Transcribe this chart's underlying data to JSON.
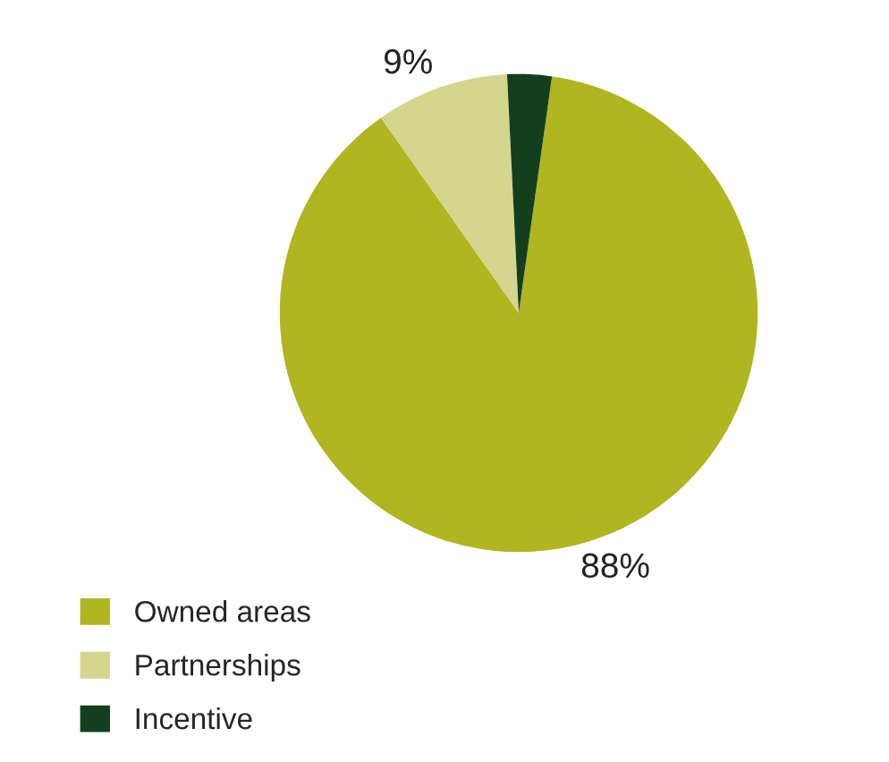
{
  "chart_data": {
    "type": "pie",
    "categories": [
      "Owned areas",
      "Partnerships",
      "Incentive"
    ],
    "values": [
      88,
      9,
      3
    ],
    "colors": [
      "#b0b520",
      "#d5d68e",
      "#133f1e"
    ],
    "value_labels": [
      "88%",
      "9%",
      null
    ],
    "legend": "bottom left"
  }
}
